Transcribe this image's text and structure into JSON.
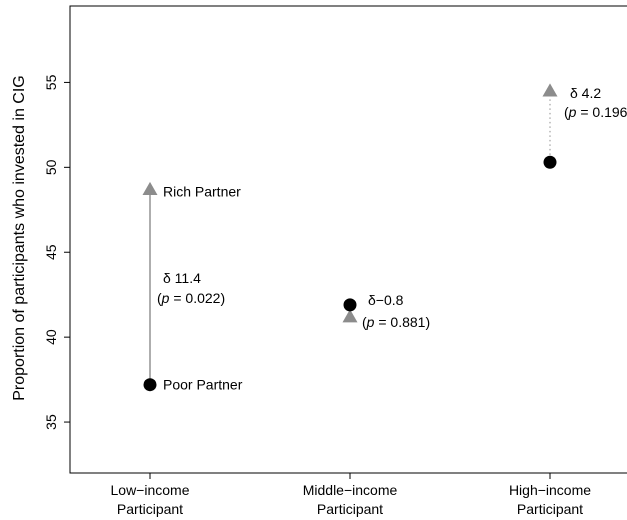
{
  "chart_data": {
    "type": "scatter",
    "ylabel": "Proportion of participants who invested in CIG",
    "ylim": [
      32,
      59.5
    ],
    "yticks": [
      35,
      40,
      45,
      50,
      55
    ],
    "categories": [
      {
        "line1": "Low−income",
        "line2": "Participant"
      },
      {
        "line1": "Middle−income",
        "line2": "Participant"
      },
      {
        "line1": "High−income",
        "line2": "Participant"
      }
    ],
    "series": [
      {
        "name": "Rich Partner",
        "marker": "triangle",
        "color": "#8c8c8c",
        "values": [
          48.7,
          41.2,
          54.5
        ]
      },
      {
        "name": "Poor Partner",
        "marker": "circle",
        "color": "#000000",
        "values": [
          37.2,
          41.9,
          50.3
        ]
      }
    ],
    "connectors": [
      {
        "style": "solid"
      },
      {
        "style": "none"
      },
      {
        "style": "dotted"
      }
    ],
    "annotations": [
      {
        "delta": "δ 11.4",
        "p": "p",
        "pval": " = 0.022)"
      },
      {
        "delta": "δ−0.8",
        "p": "p",
        "pval": " = 0.881)"
      },
      {
        "delta": "δ 4.2",
        "p": "p",
        "pval": " = 0.196)"
      }
    ],
    "legend_labels": {
      "rich": "Rich Partner",
      "poor": "Poor Partner"
    },
    "grid": false
  }
}
